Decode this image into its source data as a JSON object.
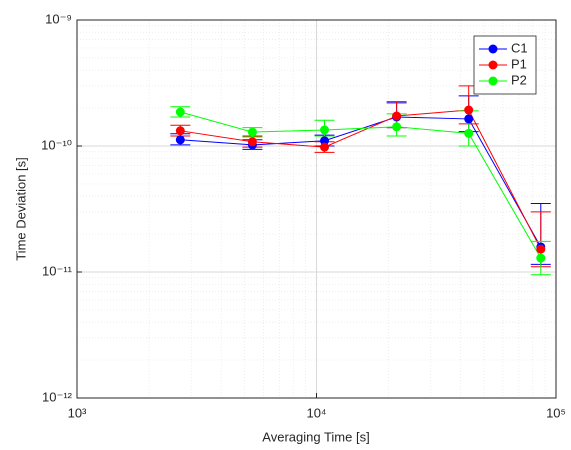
{
  "chart_data": {
    "type": "errorbar-line",
    "x_label": "Averaging Time [s]",
    "y_label": "Time Deviation [s]",
    "x": [
      2700,
      5400,
      10800,
      21600,
      43200,
      86400
    ],
    "series": [
      {
        "name": "C1",
        "color": "#0000ff",
        "values": [
          1.12e-10,
          1.02e-10,
          1.1e-10,
          1.7e-10,
          1.64e-10,
          1.58e-11
        ],
        "lower": [
          1.02e-10,
          9.4e-11,
          1e-10,
          1.4e-10,
          1.3e-10,
          1.15e-11
        ],
        "upper": [
          1.25e-10,
          1.12e-10,
          1.22e-10,
          2.2e-10,
          2.5e-10,
          3.5e-11
        ]
      },
      {
        "name": "P1",
        "color": "#ff0000",
        "values": [
          1.32e-10,
          1.08e-10,
          9.8e-11,
          1.73e-10,
          1.93e-10,
          1.52e-11
        ],
        "lower": [
          1.2e-10,
          9.8e-11,
          8.9e-11,
          1.4e-10,
          1.5e-10,
          1.1e-11
        ],
        "upper": [
          1.46e-10,
          1.2e-10,
          1.08e-10,
          2.25e-10,
          3e-10,
          3e-11
        ]
      },
      {
        "name": "P2",
        "color": "#00ff00",
        "values": [
          1.86e-10,
          1.29e-10,
          1.34e-10,
          1.42e-10,
          1.26e-10,
          1.29e-11
        ],
        "lower": [
          1.7e-10,
          1.18e-10,
          1.2e-10,
          1.2e-10,
          1e-10,
          9.5e-12
        ],
        "upper": [
          2.05e-10,
          1.4e-10,
          1.6e-10,
          1.8e-10,
          1.9e-10,
          1.75e-11
        ]
      }
    ],
    "xlog": true,
    "ylog": true,
    "xlim": [
      1000,
      100000
    ],
    "ylim": [
      1e-12,
      1e-09
    ],
    "xticks": [
      {
        "value": 1000,
        "label": "10³"
      },
      {
        "value": 10000,
        "label": "10⁴"
      },
      {
        "value": 100000,
        "label": "10⁵"
      }
    ],
    "yticks": [
      {
        "value": 1e-12,
        "label": "10⁻¹²"
      },
      {
        "value": 1e-11,
        "label": "10⁻¹¹"
      },
      {
        "value": 1e-10,
        "label": "10⁻¹⁰"
      },
      {
        "value": 1e-09,
        "label": "10⁻⁹"
      }
    ],
    "grid": true,
    "minor_grid": true,
    "legend": "top-right"
  }
}
